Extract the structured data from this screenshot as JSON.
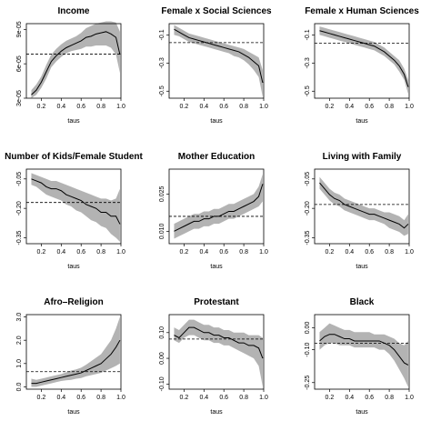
{
  "chart_data": [
    {
      "type": "line",
      "title": "Income",
      "xlabel": "taus",
      "ylabel": "",
      "xlim": [
        0.05,
        1.0
      ],
      "ylim": [
        3e-05,
        9.5e-05
      ],
      "xticks": [
        0.2,
        0.4,
        0.6,
        0.8,
        1.0
      ],
      "xtick_labels": [
        "0.2",
        "0.4",
        "0.6",
        "0.8",
        "1.0"
      ],
      "yticks": [
        3e-05,
        6e-05,
        9e-05
      ],
      "ytick_labels": [
        "3e-05",
        "6e-05",
        "9e-05"
      ],
      "reference_line": 6.85e-05,
      "x": [
        0.1,
        0.15,
        0.2,
        0.25,
        0.3,
        0.35,
        0.4,
        0.45,
        0.5,
        0.55,
        0.6,
        0.65,
        0.7,
        0.75,
        0.8,
        0.85,
        0.9,
        0.95,
        0.99
      ],
      "y": [
        3.3e-05,
        3.7e-05,
        4.4e-05,
        5.3e-05,
        6.2e-05,
        6.7e-05,
        7.1e-05,
        7.4e-05,
        7.6e-05,
        7.8e-05,
        8e-05,
        8.3e-05,
        8.4e-05,
        8.6e-05,
        8.7e-05,
        8.8e-05,
        8.6e-05,
        8.3e-05,
        6.8e-05
      ],
      "lower": [
        3e-05,
        3.3e-05,
        3.9e-05,
        4.7e-05,
        5.7e-05,
        6.2e-05,
        6.6e-05,
        6.9e-05,
        7.1e-05,
        7.2e-05,
        7.3e-05,
        7.5e-05,
        7.5e-05,
        7.6e-05,
        7.6e-05,
        7.6e-05,
        7.4e-05,
        6.8e-05,
        5.2e-05
      ],
      "upper": [
        3.7e-05,
        4.2e-05,
        4.9e-05,
        5.9e-05,
        6.8e-05,
        7.3e-05,
        7.7e-05,
        8e-05,
        8.2e-05,
        8.4e-05,
        8.7e-05,
        9.1e-05,
        9.3e-05,
        9.5e-05,
        9.6e-05,
        9.7e-05,
        9.7e-05,
        9.6e-05,
        8.8e-05
      ]
    },
    {
      "type": "line",
      "title": "Female x Social Sciences",
      "xlabel": "taus",
      "ylabel": "",
      "xlim": [
        0.05,
        1.0
      ],
      "ylim": [
        -0.55,
        -0.02
      ],
      "xticks": [
        0.2,
        0.4,
        0.6,
        0.8,
        1.0
      ],
      "xtick_labels": [
        "0.2",
        "0.4",
        "0.6",
        "0.8",
        "1.0"
      ],
      "yticks": [
        -0.1,
        -0.3,
        -0.5
      ],
      "ytick_labels": [
        "-0.1",
        "-0.3",
        "-0.5"
      ],
      "reference_line": -0.155,
      "x": [
        0.1,
        0.15,
        0.2,
        0.25,
        0.3,
        0.35,
        0.4,
        0.45,
        0.5,
        0.55,
        0.6,
        0.65,
        0.7,
        0.75,
        0.8,
        0.85,
        0.9,
        0.95,
        0.99
      ],
      "y": [
        -0.06,
        -0.08,
        -0.1,
        -0.12,
        -0.13,
        -0.14,
        -0.15,
        -0.16,
        -0.17,
        -0.18,
        -0.19,
        -0.2,
        -0.21,
        -0.22,
        -0.24,
        -0.26,
        -0.29,
        -0.32,
        -0.44
      ],
      "lower": [
        -0.1,
        -0.11,
        -0.13,
        -0.15,
        -0.16,
        -0.17,
        -0.18,
        -0.19,
        -0.2,
        -0.21,
        -0.22,
        -0.23,
        -0.25,
        -0.26,
        -0.28,
        -0.31,
        -0.35,
        -0.4,
        -0.54
      ],
      "upper": [
        -0.03,
        -0.05,
        -0.07,
        -0.09,
        -0.1,
        -0.11,
        -0.12,
        -0.13,
        -0.14,
        -0.15,
        -0.16,
        -0.17,
        -0.18,
        -0.19,
        -0.2,
        -0.22,
        -0.24,
        -0.26,
        -0.35
      ]
    },
    {
      "type": "line",
      "title": "Female x Human Sciences",
      "xlabel": "taus",
      "ylabel": "",
      "xlim": [
        0.05,
        1.0
      ],
      "ylim": [
        -0.55,
        -0.02
      ],
      "xticks": [
        0.2,
        0.4,
        0.6,
        0.8,
        1.0
      ],
      "xtick_labels": [
        "0.2",
        "0.4",
        "0.6",
        "0.8",
        "1.0"
      ],
      "yticks": [
        -0.1,
        -0.3,
        -0.5
      ],
      "ytick_labels": [
        "-0.1",
        "-0.3",
        "-0.5"
      ],
      "reference_line": -0.16,
      "x": [
        0.1,
        0.15,
        0.2,
        0.25,
        0.3,
        0.35,
        0.4,
        0.45,
        0.5,
        0.55,
        0.6,
        0.65,
        0.7,
        0.75,
        0.8,
        0.85,
        0.9,
        0.95,
        0.99
      ],
      "y": [
        -0.07,
        -0.08,
        -0.09,
        -0.1,
        -0.11,
        -0.12,
        -0.13,
        -0.14,
        -0.15,
        -0.16,
        -0.17,
        -0.18,
        -0.2,
        -0.22,
        -0.25,
        -0.28,
        -0.32,
        -0.38,
        -0.47
      ],
      "lower": [
        -0.1,
        -0.11,
        -0.12,
        -0.13,
        -0.14,
        -0.15,
        -0.16,
        -0.17,
        -0.18,
        -0.19,
        -0.2,
        -0.21,
        -0.23,
        -0.25,
        -0.28,
        -0.31,
        -0.36,
        -0.42,
        -0.52
      ],
      "upper": [
        -0.04,
        -0.05,
        -0.06,
        -0.07,
        -0.08,
        -0.09,
        -0.1,
        -0.11,
        -0.12,
        -0.13,
        -0.14,
        -0.15,
        -0.17,
        -0.19,
        -0.22,
        -0.25,
        -0.28,
        -0.34,
        -0.42
      ]
    },
    {
      "type": "line",
      "title": "Number of Kids/Female Student",
      "xlabel": "taus",
      "ylabel": "",
      "xlim": [
        0.05,
        1.0
      ],
      "ylim": [
        -0.38,
        0.0
      ],
      "xticks": [
        0.2,
        0.4,
        0.6,
        0.8,
        1.0
      ],
      "xtick_labels": [
        "0.2",
        "0.4",
        "0.6",
        "0.8",
        "1.0"
      ],
      "yticks": [
        -0.05,
        -0.2,
        -0.35
      ],
      "ytick_labels": [
        "-0.05",
        "-0.20",
        "-0.35"
      ],
      "reference_line": -0.17,
      "x": [
        0.1,
        0.15,
        0.2,
        0.25,
        0.3,
        0.35,
        0.4,
        0.45,
        0.5,
        0.55,
        0.6,
        0.65,
        0.7,
        0.75,
        0.8,
        0.85,
        0.9,
        0.95,
        0.99
      ],
      "y": [
        -0.05,
        -0.06,
        -0.07,
        -0.09,
        -0.1,
        -0.1,
        -0.11,
        -0.13,
        -0.14,
        -0.15,
        -0.16,
        -0.18,
        -0.19,
        -0.2,
        -0.22,
        -0.22,
        -0.24,
        -0.24,
        -0.28
      ],
      "lower": [
        -0.08,
        -0.09,
        -0.11,
        -0.13,
        -0.14,
        -0.15,
        -0.16,
        -0.18,
        -0.19,
        -0.21,
        -0.22,
        -0.24,
        -0.26,
        -0.27,
        -0.29,
        -0.3,
        -0.33,
        -0.35,
        -0.37
      ],
      "upper": [
        -0.02,
        -0.03,
        -0.04,
        -0.05,
        -0.06,
        -0.06,
        -0.07,
        -0.08,
        -0.09,
        -0.1,
        -0.11,
        -0.12,
        -0.13,
        -0.14,
        -0.15,
        -0.15,
        -0.16,
        -0.15,
        -0.1
      ]
    },
    {
      "type": "line",
      "title": "Mother Education",
      "xlabel": "taus",
      "ylabel": "",
      "xlim": [
        0.05,
        1.0
      ],
      "ylim": [
        0.005,
        0.035
      ],
      "xticks": [
        0.2,
        0.4,
        0.6,
        0.8,
        1.0
      ],
      "xtick_labels": [
        "0.2",
        "0.4",
        "0.6",
        "0.8",
        "1.0"
      ],
      "yticks": [
        0.01,
        0.025
      ],
      "ytick_labels": [
        "0.010",
        "0.025"
      ],
      "reference_line": 0.016,
      "x": [
        0.1,
        0.15,
        0.2,
        0.25,
        0.3,
        0.35,
        0.4,
        0.45,
        0.5,
        0.55,
        0.6,
        0.65,
        0.7,
        0.75,
        0.8,
        0.85,
        0.9,
        0.95,
        0.99
      ],
      "y": [
        0.01,
        0.011,
        0.012,
        0.013,
        0.014,
        0.014,
        0.015,
        0.015,
        0.016,
        0.016,
        0.017,
        0.018,
        0.018,
        0.019,
        0.02,
        0.021,
        0.022,
        0.024,
        0.029
      ],
      "lower": [
        0.007,
        0.008,
        0.009,
        0.01,
        0.011,
        0.011,
        0.012,
        0.012,
        0.013,
        0.013,
        0.014,
        0.015,
        0.015,
        0.016,
        0.017,
        0.018,
        0.019,
        0.02,
        0.022
      ],
      "upper": [
        0.013,
        0.014,
        0.015,
        0.016,
        0.017,
        0.017,
        0.018,
        0.018,
        0.019,
        0.019,
        0.02,
        0.021,
        0.021,
        0.022,
        0.023,
        0.024,
        0.025,
        0.028,
        0.033
      ]
    },
    {
      "type": "line",
      "title": "Living with Family",
      "xlabel": "taus",
      "ylabel": "",
      "xlim": [
        0.05,
        1.0
      ],
      "ylim": [
        -0.38,
        0.0
      ],
      "xticks": [
        0.2,
        0.4,
        0.6,
        0.8,
        1.0
      ],
      "xtick_labels": [
        "0.2",
        "0.4",
        "0.6",
        "0.8",
        "1.0"
      ],
      "yticks": [
        -0.05,
        -0.2,
        -0.35
      ],
      "ytick_labels": [
        "-0.05",
        "-0.20",
        "-0.35"
      ],
      "reference_line": -0.18,
      "x": [
        0.1,
        0.15,
        0.2,
        0.25,
        0.3,
        0.35,
        0.4,
        0.45,
        0.5,
        0.55,
        0.6,
        0.65,
        0.7,
        0.75,
        0.8,
        0.85,
        0.9,
        0.95,
        0.99
      ],
      "y": [
        -0.07,
        -0.1,
        -0.13,
        -0.15,
        -0.16,
        -0.18,
        -0.19,
        -0.2,
        -0.21,
        -0.22,
        -0.23,
        -0.23,
        -0.24,
        -0.25,
        -0.26,
        -0.27,
        -0.28,
        -0.3,
        -0.28
      ],
      "lower": [
        -0.1,
        -0.13,
        -0.16,
        -0.18,
        -0.19,
        -0.21,
        -0.22,
        -0.23,
        -0.24,
        -0.25,
        -0.26,
        -0.26,
        -0.27,
        -0.28,
        -0.3,
        -0.31,
        -0.32,
        -0.34,
        -0.33
      ],
      "upper": [
        -0.04,
        -0.07,
        -0.1,
        -0.12,
        -0.13,
        -0.15,
        -0.16,
        -0.17,
        -0.18,
        -0.19,
        -0.2,
        -0.2,
        -0.21,
        -0.22,
        -0.22,
        -0.23,
        -0.24,
        -0.26,
        -0.23
      ]
    },
    {
      "type": "line",
      "title": "Afro–Religion",
      "xlabel": "taus",
      "ylabel": "",
      "xlim": [
        0.05,
        1.0
      ],
      "ylim": [
        -0.1,
        3.1
      ],
      "xticks": [
        0.2,
        0.4,
        0.6,
        0.8,
        1.0
      ],
      "xtick_labels": [
        "0.2",
        "0.4",
        "0.6",
        "0.8",
        "1.0"
      ],
      "yticks": [
        0.0,
        1.0,
        2.0,
        3.0
      ],
      "ytick_labels": [
        "0.0",
        "1.0",
        "2.0",
        "3.0"
      ],
      "reference_line": 0.65,
      "x": [
        0.1,
        0.15,
        0.2,
        0.25,
        0.3,
        0.35,
        0.4,
        0.45,
        0.5,
        0.55,
        0.6,
        0.65,
        0.7,
        0.75,
        0.8,
        0.85,
        0.9,
        0.95,
        0.99
      ],
      "y": [
        0.15,
        0.15,
        0.2,
        0.25,
        0.3,
        0.35,
        0.4,
        0.45,
        0.5,
        0.55,
        0.6,
        0.7,
        0.8,
        0.9,
        1.0,
        1.2,
        1.4,
        1.7,
        2.0
      ],
      "lower": [
        0.0,
        0.0,
        0.05,
        0.1,
        0.15,
        0.2,
        0.25,
        0.28,
        0.3,
        0.35,
        0.38,
        0.45,
        0.5,
        0.55,
        0.6,
        0.7,
        0.8,
        0.9,
        1.0
      ],
      "upper": [
        0.35,
        0.3,
        0.35,
        0.4,
        0.45,
        0.5,
        0.55,
        0.62,
        0.7,
        0.75,
        0.82,
        0.95,
        1.1,
        1.25,
        1.4,
        1.7,
        2.0,
        2.5,
        3.0
      ]
    },
    {
      "type": "line",
      "title": "Protestant",
      "xlabel": "taus",
      "ylabel": "",
      "xlim": [
        0.05,
        1.0
      ],
      "ylim": [
        -0.12,
        0.17
      ],
      "xticks": [
        0.2,
        0.4,
        0.6,
        0.8,
        1.0
      ],
      "xtick_labels": [
        "0.2",
        "0.4",
        "0.6",
        "0.8",
        "1.0"
      ],
      "yticks": [
        0.1,
        0.0,
        -0.1
      ],
      "ytick_labels": [
        "0.10",
        "0.00",
        "-0.10"
      ],
      "reference_line": 0.075,
      "x": [
        0.1,
        0.15,
        0.2,
        0.25,
        0.3,
        0.35,
        0.4,
        0.45,
        0.5,
        0.55,
        0.6,
        0.65,
        0.7,
        0.75,
        0.8,
        0.85,
        0.9,
        0.95,
        0.99
      ],
      "y": [
        0.09,
        0.08,
        0.1,
        0.12,
        0.12,
        0.11,
        0.1,
        0.1,
        0.09,
        0.09,
        0.08,
        0.08,
        0.07,
        0.06,
        0.06,
        0.05,
        0.05,
        0.04,
        0.0
      ],
      "lower": [
        0.07,
        0.06,
        0.08,
        0.09,
        0.09,
        0.08,
        0.07,
        0.07,
        0.06,
        0.06,
        0.05,
        0.05,
        0.04,
        0.03,
        0.02,
        0.01,
        0.0,
        -0.03,
        -0.11
      ],
      "upper": [
        0.12,
        0.11,
        0.13,
        0.15,
        0.15,
        0.14,
        0.13,
        0.13,
        0.12,
        0.12,
        0.11,
        0.11,
        0.1,
        0.1,
        0.1,
        0.09,
        0.09,
        0.09,
        0.08
      ]
    },
    {
      "type": "line",
      "title": "Black",
      "xlabel": "taus",
      "ylabel": "",
      "xlim": [
        0.05,
        1.0
      ],
      "ylim": [
        -0.28,
        0.06
      ],
      "xticks": [
        0.2,
        0.4,
        0.6,
        0.8,
        1.0
      ],
      "xtick_labels": [
        "0.2",
        "0.4",
        "0.6",
        "0.8",
        "1.0"
      ],
      "yticks": [
        0.0,
        -0.1,
        -0.25
      ],
      "ytick_labels": [
        "0.00",
        "-0.10",
        "-0.25"
      ],
      "reference_line": -0.07,
      "x": [
        0.1,
        0.15,
        0.2,
        0.25,
        0.3,
        0.35,
        0.4,
        0.45,
        0.5,
        0.55,
        0.6,
        0.65,
        0.7,
        0.75,
        0.8,
        0.85,
        0.9,
        0.95,
        0.99
      ],
      "y": [
        -0.06,
        -0.04,
        -0.03,
        -0.03,
        -0.04,
        -0.05,
        -0.05,
        -0.06,
        -0.06,
        -0.06,
        -0.06,
        -0.06,
        -0.06,
        -0.07,
        -0.08,
        -0.1,
        -0.13,
        -0.16,
        -0.17
      ],
      "lower": [
        -0.1,
        -0.08,
        -0.07,
        -0.07,
        -0.08,
        -0.08,
        -0.08,
        -0.09,
        -0.09,
        -0.09,
        -0.09,
        -0.09,
        -0.1,
        -0.1,
        -0.12,
        -0.15,
        -0.19,
        -0.23,
        -0.27
      ],
      "upper": [
        -0.02,
        0.0,
        0.02,
        0.01,
        0.0,
        -0.01,
        -0.01,
        -0.02,
        -0.02,
        -0.02,
        -0.02,
        -0.03,
        -0.03,
        -0.03,
        -0.04,
        -0.05,
        -0.07,
        -0.08,
        -0.06
      ]
    }
  ]
}
